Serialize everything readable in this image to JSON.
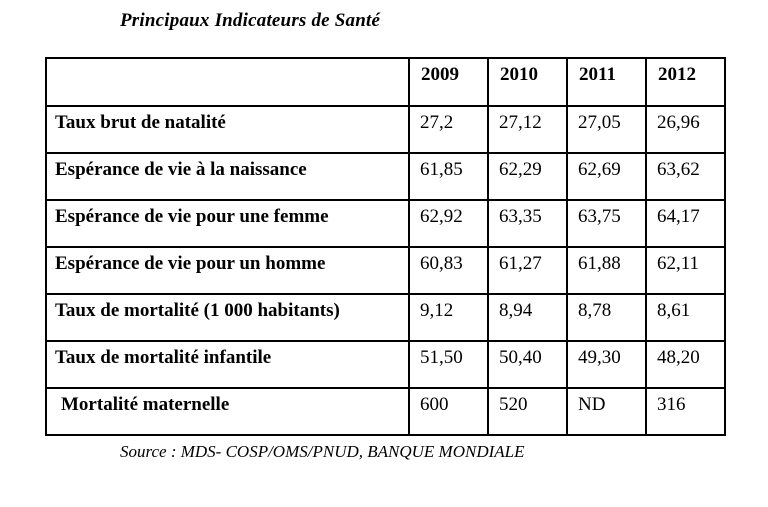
{
  "page": {
    "title": "Principaux Indicateurs de Santé",
    "source_note": "Source : MDS- COSP/OMS/PNUD, BANQUE MONDIALE"
  },
  "colors": {
    "text": "#000000",
    "background": "#ffffff",
    "table_border": "#000000"
  },
  "table": {
    "corner_header": "",
    "columns": [
      "2009",
      "2010",
      "2011",
      "2012"
    ],
    "rows": [
      {
        "label": "Taux brut de natalité",
        "values": [
          "27,2",
          "27,12",
          "27,05",
          "26,96"
        ]
      },
      {
        "label": "Espérance de vie à la naissance",
        "values": [
          "61,85",
          "62,29",
          "62,69",
          "63,62"
        ]
      },
      {
        "label": "Espérance de vie pour une femme",
        "values": [
          "62,92",
          "63,35",
          "63,75",
          "64,17"
        ]
      },
      {
        "label": "Espérance de vie pour un homme",
        "values": [
          "60,83",
          "61,27",
          "61,88",
          "62,11"
        ]
      },
      {
        "label": "Taux de mortalité  (1 000 habitants)",
        "values": [
          "9,12",
          "8,94",
          "8,78",
          "8,61"
        ]
      },
      {
        "label": "Taux de mortalité infantile",
        "values": [
          "51,50",
          "50,40",
          "49,30",
          "48,20"
        ]
      },
      {
        "label": "Mortalité maternelle",
        "values": [
          "600",
          "520",
          "ND",
          "316"
        ]
      }
    ]
  },
  "chart_data": {
    "type": "table",
    "title": "Principaux Indicateurs de Santé",
    "categories": [
      "2009",
      "2010",
      "2011",
      "2012"
    ],
    "series": [
      {
        "name": "Taux brut de natalité",
        "values": [
          27.2,
          27.12,
          27.05,
          26.96
        ]
      },
      {
        "name": "Espérance de vie à la naissance",
        "values": [
          61.85,
          62.29,
          62.69,
          63.62
        ]
      },
      {
        "name": "Espérance de vie pour une femme",
        "values": [
          62.92,
          63.35,
          63.75,
          64.17
        ]
      },
      {
        "name": "Espérance de vie pour un homme",
        "values": [
          60.83,
          61.27,
          61.88,
          62.11
        ]
      },
      {
        "name": "Taux de mortalité  (1 000 habitants)",
        "values": [
          9.12,
          8.94,
          8.78,
          8.61
        ]
      },
      {
        "name": "Taux de mortalité infantile",
        "values": [
          51.5,
          50.4,
          49.3,
          48.2
        ]
      },
      {
        "name": "Mortalité maternelle",
        "values": [
          600,
          520,
          null,
          316
        ]
      }
    ]
  }
}
